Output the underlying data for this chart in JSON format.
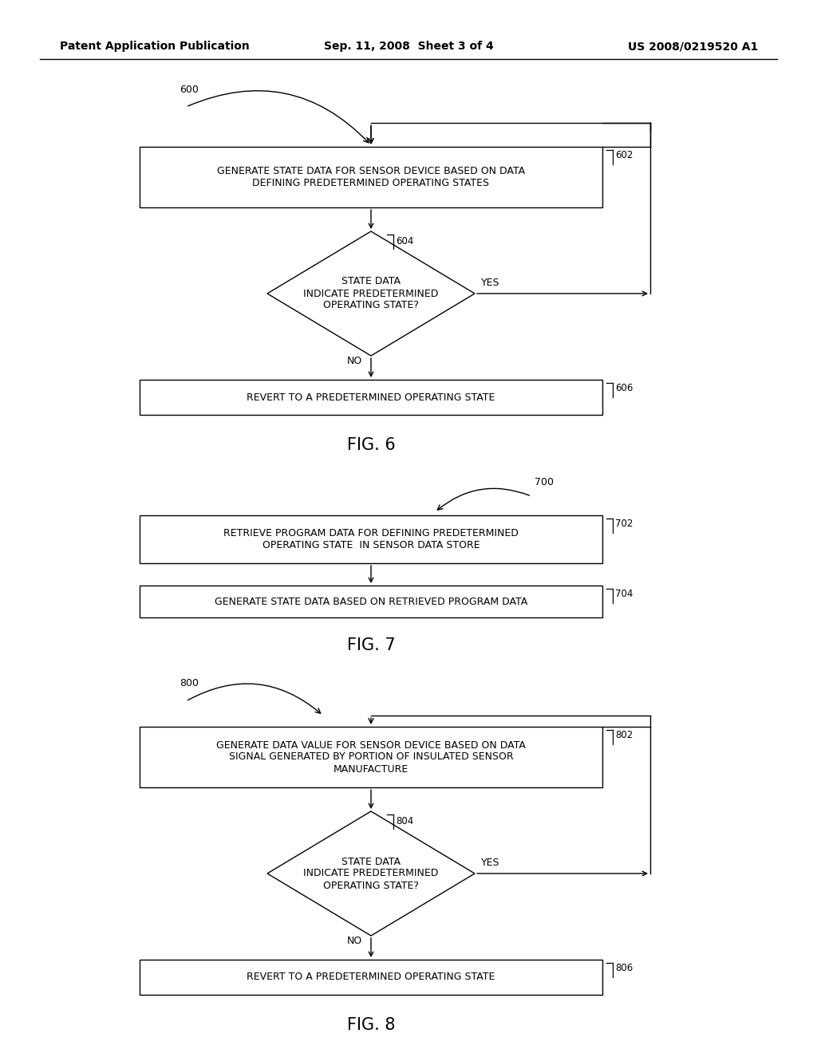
{
  "bg_color": "#ffffff",
  "line_color": "#000000",
  "text_color": "#000000",
  "header_left": "Patent Application Publication",
  "header_center": "Sep. 11, 2008  Sheet 3 of 4",
  "header_right": "US 2008/0219520 A1",
  "fig6_label": "600",
  "fig6_title": "FIG. 6",
  "box602_text": "GENERATE STATE DATA FOR SENSOR DEVICE BASED ON DATA\nDEFINING PREDETERMINED OPERATING STATES",
  "box602_label": "602",
  "diamond604_text": "STATE DATA\nINDICATE PREDETERMINED\nOPERATING STATE?",
  "diamond604_label": "604",
  "box606_text": "REVERT TO A PREDETERMINED OPERATING STATE",
  "box606_label": "606",
  "yes_label_6": "YES",
  "no_label_6": "NO",
  "fig7_label": "700",
  "fig7_title": "FIG. 7",
  "box702_text": "RETRIEVE PROGRAM DATA FOR DEFINING PREDETERMINED\nOPERATING STATE  IN SENSOR DATA STORE",
  "box702_label": "702",
  "box704_text": "GENERATE STATE DATA BASED ON RETRIEVED PROGRAM DATA",
  "box704_label": "704",
  "fig8_label": "800",
  "fig8_title": "FIG. 8",
  "box802_text": "GENERATE DATA VALUE FOR SENSOR DEVICE BASED ON DATA\nSIGNAL GENERATED BY PORTION OF INSULATED SENSOR\nMANUFACTURE",
  "box802_label": "802",
  "diamond804_text": "STATE DATA\nINDICATE PREDETERMINED\nOPERATING STATE?",
  "diamond804_label": "804",
  "box806_text": "REVERT TO A PREDETERMINED OPERATING STATE",
  "box806_label": "806",
  "yes_label_8": "YES",
  "no_label_8": "NO"
}
